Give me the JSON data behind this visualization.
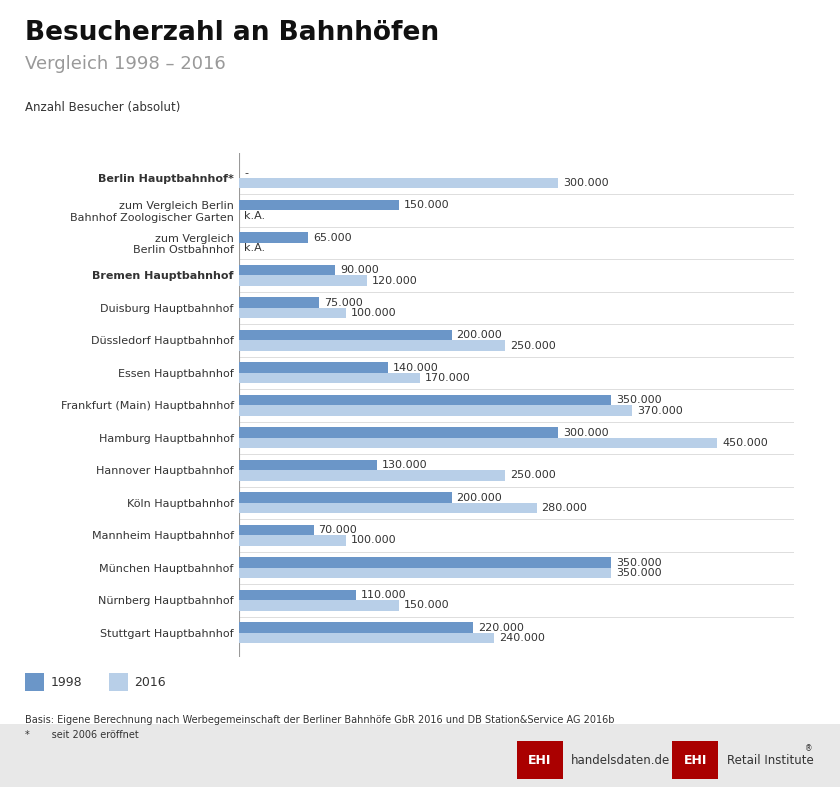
{
  "title": "Besucherzahl an Bahnhöfen",
  "subtitle": "Vergleich 1998 – 2016",
  "ylabel_axis": "Anzahl Besucher (absolut)",
  "categories": [
    "Berlin Hauptbahnhof*",
    "zum Vergleich Berlin\nBahnhof Zoologischer Garten",
    "zum Vergleich\nBerlin Ostbahnhof",
    "Bremen Hauptbahnhof",
    "Duisburg Hauptbahnhof",
    "Düssledorf Hauptbahnhof",
    "Essen Hauptbahnhof",
    "Frankfurt (Main) Hauptbahnhof",
    "Hamburg Hauptbahnhof",
    "Hannover Hauptbahnhof",
    "Köln Hauptbahnhof",
    "Mannheim Hauptbahnhof",
    "München Hauptbahnhof",
    "Nürnberg Hauptbahnhof",
    "Stuttgart Hauptbahnhof"
  ],
  "values_1998": [
    null,
    150000,
    65000,
    90000,
    75000,
    200000,
    140000,
    350000,
    300000,
    130000,
    200000,
    70000,
    350000,
    110000,
    220000
  ],
  "values_2016": [
    300000,
    null,
    null,
    120000,
    100000,
    250000,
    170000,
    370000,
    450000,
    250000,
    280000,
    100000,
    350000,
    150000,
    240000
  ],
  "labels_1998": [
    "-",
    "150.000",
    "65.000",
    "90.000",
    "75.000",
    "200.000",
    "140.000",
    "350.000",
    "300.000",
    "130.000",
    "200.000",
    "70.000",
    "350.000",
    "110.000",
    "220.000"
  ],
  "labels_2016": [
    "300.000",
    "k.A.",
    "k.A.",
    "120.000",
    "100.000",
    "250.000",
    "170.000",
    "370.000",
    "450.000",
    "250.000",
    "280.000",
    "100.000",
    "350.000",
    "150.000",
    "240.000"
  ],
  "color_1998": "#6b96c8",
  "color_2016": "#b8cfe8",
  "background_color": "#e8e8e8",
  "chart_background": "#ffffff",
  "text_color": "#333333",
  "source_text": "Basis: Eigene Berechnung nach Werbegemeinschaft der Berliner Bahnhöfe GbR 2016 und DB Station&Service AG 2016b",
  "footnote_text": "*       seit 2006 eröffnet",
  "max_value": 450000,
  "bar_height": 0.32
}
